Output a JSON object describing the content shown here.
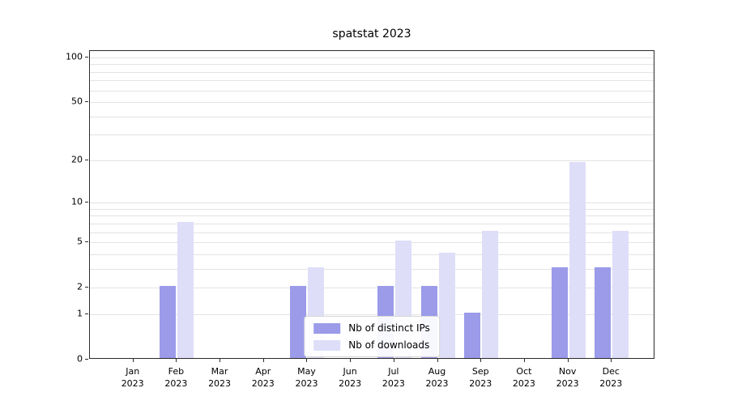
{
  "title": "spatstat 2023",
  "chart_data": {
    "type": "bar",
    "title": "spatstat 2023",
    "scale": "log1p",
    "grid": true,
    "legend_position": "lower-center",
    "year": "2023",
    "categories": [
      "Jan",
      "Feb",
      "Mar",
      "Apr",
      "May",
      "Jun",
      "Jul",
      "Aug",
      "Sep",
      "Oct",
      "Nov",
      "Dec"
    ],
    "series": [
      {
        "name": "Nb of distinct IPs",
        "color": "#9b9bea",
        "values": [
          0,
          2,
          0,
          0,
          2,
          0,
          2,
          2,
          1,
          0,
          3,
          3
        ]
      },
      {
        "name": "Nb of downloads",
        "color": "#dedef8",
        "values": [
          0,
          7,
          0,
          0,
          3,
          0,
          5,
          4,
          6,
          0,
          19,
          6
        ]
      }
    ],
    "yticks": [
      0,
      1,
      2,
      5,
      10,
      20,
      50,
      100
    ],
    "minor_gridlines": [
      1,
      2,
      3,
      4,
      5,
      6,
      7,
      8,
      9,
      10,
      20,
      30,
      40,
      50,
      60,
      70,
      80,
      90,
      100
    ],
    "ylim": [
      0,
      110
    ]
  },
  "legend": {
    "items": [
      {
        "label": "Nb of distinct IPs"
      },
      {
        "label": "Nb of downloads"
      }
    ]
  }
}
